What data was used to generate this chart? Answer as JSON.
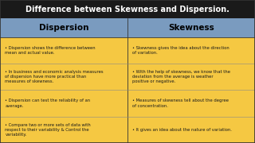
{
  "title": "Difference between Skewness and Dispersion.",
  "title_bg": "#1a1a1a",
  "title_color": "white",
  "header_bg": "#7a9bbf",
  "header_text_color": "black",
  "col1_header": "Dispersion",
  "col2_header": "Skewness",
  "body_bg": "#f5c842",
  "body_text_color": "#1a1a1a",
  "divider_color": "#888888",
  "border_color": "#333333",
  "col1_items": [
    "Dispersion shows the difference between\nmean and actual value.",
    "In business and economic analysis measures\nof dispersion have more practical than\nmeasures of skewness.",
    "Dispersion can test the reliability of an\naverage.",
    "Compare two or more sets of data with\nrespect to their variability & Control the\nvariability."
  ],
  "col2_items": [
    "Skewness gives the idea about the direction\nof variation.",
    "With the help of skewness, we know that the\ndeviation from the average is weather\npositive or negative.",
    "Measures of skewness tell about the degree\nof concentration.",
    "It gives an idea about the nature of variation."
  ],
  "fig_width": 3.2,
  "fig_height": 1.8,
  "dpi": 100
}
